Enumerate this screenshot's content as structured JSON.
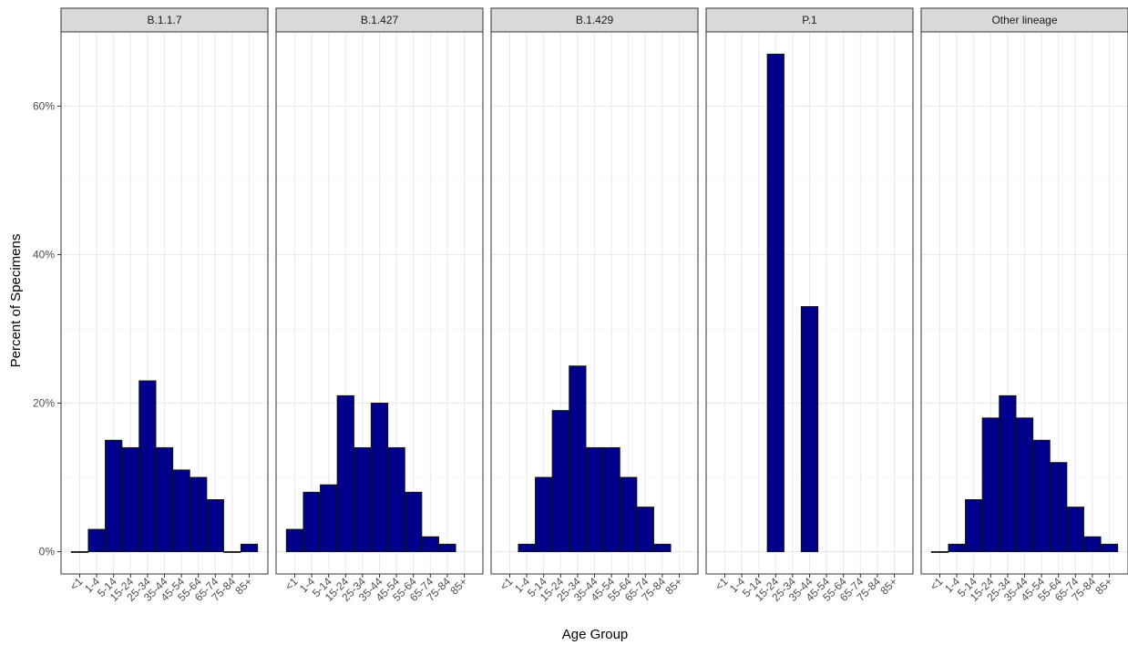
{
  "chart_data": {
    "type": "bar",
    "ylabel": "Percent of Specimens",
    "xlabel": "Age Group",
    "ylim": [
      -3,
      70
    ],
    "yticks": [
      0,
      20,
      40,
      60
    ],
    "ytick_labels": [
      "0%",
      "20%",
      "40%",
      "60%"
    ],
    "grid": true,
    "categories": [
      "<1",
      "1-4",
      "5-14",
      "15-24",
      "25-34",
      "35-44",
      "45-54",
      "55-64",
      "65-74",
      "75-84",
      "85+"
    ],
    "series": [
      {
        "name": "B.1.1.7",
        "values": [
          0,
          3,
          15,
          14,
          23,
          14,
          11,
          10,
          7,
          0,
          1
        ]
      },
      {
        "name": "B.1.427",
        "values": [
          3,
          8,
          9,
          21,
          14,
          20,
          14,
          8,
          2,
          1,
          null
        ]
      },
      {
        "name": "B.1.429",
        "values": [
          null,
          1,
          10,
          19,
          25,
          14,
          14,
          10,
          6,
          1,
          null
        ]
      },
      {
        "name": "P.1",
        "values": [
          null,
          null,
          null,
          67,
          null,
          33,
          null,
          null,
          null,
          null,
          null
        ]
      },
      {
        "name": "Other lineage",
        "values": [
          0,
          1,
          7,
          18,
          21,
          18,
          15,
          12,
          6,
          2,
          1
        ]
      }
    ],
    "colors": {
      "bar_fill": "#00008B",
      "bar_stroke": "#111111",
      "strip_fill": "#D9D9D9",
      "grid": "#EBEBEB",
      "panel_border": "#333333"
    }
  }
}
